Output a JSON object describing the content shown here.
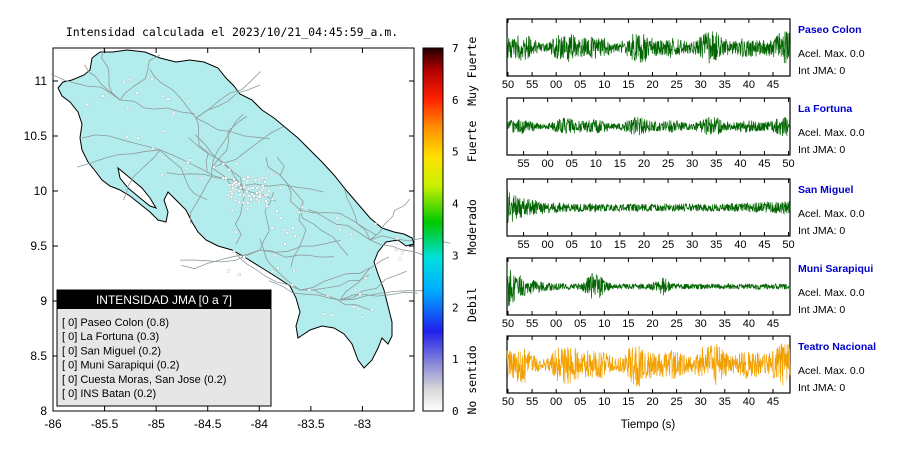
{
  "map": {
    "title": "Intensidad calculada el 2023/10/21_04:45:59_a.m.",
    "x_ticks": [
      "-86",
      "-85.5",
      "-85",
      "-84.5",
      "-84",
      "-83.5",
      "-83"
    ],
    "y_ticks": [
      "11",
      "10.5",
      "10",
      "9.5",
      "9",
      "8.5",
      "8"
    ],
    "xlim": [
      -86,
      -82.5
    ],
    "ylim": [
      8,
      11.3
    ],
    "legend": {
      "title": "INTENSIDAD JMA [0 a 7]",
      "items": [
        "[ 0]  Paseo Colon (0.8)",
        "[ 0]  La Fortuna (0.3)",
        "[ 0]  San Miguel (0.2)",
        "[ 0]  Muni Sarapiqui (0.2)",
        "[ 0]  Cuesta Moras, San Jose (0.2)",
        "[ 0]  INS Batan (0.2)"
      ]
    },
    "land_color": "#b3ecec"
  },
  "colorbar": {
    "ticks": [
      "7",
      "6",
      "5",
      "4",
      "3",
      "2",
      "1",
      "0"
    ],
    "range": [
      0,
      7
    ],
    "labels": [
      "Muy Fuerte",
      "Fuerte",
      "Moderado",
      "Debil",
      "No sentido"
    ]
  },
  "chart_data": {
    "type": "line",
    "xlabel": "Tiempo (s)",
    "series": [
      {
        "name": "Paseo Colon",
        "acel_text": "Acel. Max. 0.0",
        "int_text": "Int JMA: 0",
        "ticks": [
          "50",
          "55",
          "00",
          "05",
          "10",
          "15",
          "20",
          "25",
          "30",
          "35",
          "40",
          "45"
        ],
        "color": "#006400",
        "label_color": "#0000cc",
        "amp": 0.55,
        "env": "flat"
      },
      {
        "name": "La Fortuna",
        "acel_text": "Acel. Max. 0.0",
        "int_text": "Int JMA: 0",
        "ticks": [
          "55",
          "00",
          "05",
          "10",
          "15",
          "20",
          "25",
          "30",
          "35",
          "40",
          "45",
          "50"
        ],
        "color": "#006400",
        "label_color": "#0000cc",
        "amp": 0.32,
        "env": "flat"
      },
      {
        "name": "San Miguel",
        "acel_text": "Acel. Max. 0.0",
        "int_text": "Int JMA: 0",
        "ticks": [
          "55",
          "00",
          "05",
          "10",
          "15",
          "20",
          "25",
          "30",
          "35",
          "40",
          "45",
          "50"
        ],
        "color": "#006400",
        "label_color": "#0000cc",
        "amp": 0.45,
        "env": "decay"
      },
      {
        "name": "Muni Sarapiqui",
        "acel_text": "Acel. Max. 0.0",
        "int_text": "Int JMA: 0",
        "ticks": [
          "50",
          "55",
          "00",
          "05",
          "10",
          "15",
          "20",
          "25",
          "30",
          "35",
          "40",
          "45"
        ],
        "color": "#006400",
        "label_color": "#0000cc",
        "amp": 0.9,
        "env": "spike"
      },
      {
        "name": "Teatro Nacional",
        "acel_text": "Acel. Max. 0.0",
        "int_text": "Int JMA: 0",
        "ticks": [
          "50",
          "55",
          "00",
          "05",
          "10",
          "15",
          "20",
          "25",
          "30",
          "35",
          "40",
          "45"
        ],
        "color": "#f2a000",
        "label_color": "#0000cc",
        "amp": 0.75,
        "env": "flat"
      }
    ]
  }
}
